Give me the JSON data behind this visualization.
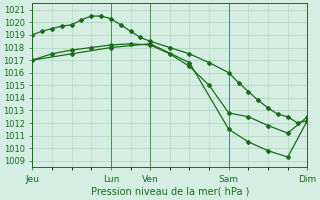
{
  "title": "Pression niveau de la mer( hPa )",
  "ylabel_values": [
    1009,
    1010,
    1011,
    1012,
    1013,
    1014,
    1015,
    1016,
    1017,
    1018,
    1019,
    1020,
    1021
  ],
  "ylim": [
    1008.5,
    1021.5
  ],
  "bg_color": "#d5eee3",
  "grid_color": "#aad4bb",
  "line_color": "#1a6b1a",
  "xlim": [
    0,
    7
  ],
  "xtick_positions": [
    0,
    2,
    3,
    5,
    7
  ],
  "xtick_labels": [
    "Jeu",
    "Lun",
    "Ven",
    "Sam",
    "Dim"
  ],
  "vline_positions": [
    2,
    3,
    5
  ],
  "line1_x": [
    0.0,
    0.25,
    0.5,
    0.75,
    1.0,
    1.25,
    1.5,
    1.75,
    2.0,
    2.25,
    2.5,
    2.75,
    3.0,
    3.5,
    4.0,
    4.5,
    5.0,
    5.25,
    5.5,
    5.75,
    6.0,
    6.25,
    6.5,
    6.75,
    7.0
  ],
  "line1_y": [
    1019.0,
    1019.3,
    1019.5,
    1019.7,
    1019.8,
    1020.2,
    1020.5,
    1020.5,
    1020.3,
    1019.8,
    1019.3,
    1018.8,
    1018.5,
    1018.0,
    1017.5,
    1016.8,
    1016.0,
    1015.2,
    1014.5,
    1013.8,
    1013.2,
    1012.7,
    1012.5,
    1012.0,
    1012.2
  ],
  "line2_x": [
    0.0,
    0.5,
    1.0,
    1.5,
    2.0,
    2.5,
    3.0,
    3.5,
    4.0,
    4.5,
    5.0,
    5.5,
    6.0,
    6.5,
    7.0
  ],
  "line2_y": [
    1017.0,
    1017.5,
    1017.8,
    1018.0,
    1018.2,
    1018.3,
    1018.2,
    1017.5,
    1016.5,
    1015.0,
    1012.8,
    1012.5,
    1011.8,
    1011.2,
    1012.5
  ],
  "line3_x": [
    0.0,
    1.0,
    2.0,
    3.0,
    4.0,
    5.0,
    5.5,
    6.0,
    6.5,
    7.0
  ],
  "line3_y": [
    1017.0,
    1017.5,
    1018.0,
    1018.3,
    1016.8,
    1011.5,
    1010.5,
    1009.8,
    1009.3,
    1012.2
  ]
}
